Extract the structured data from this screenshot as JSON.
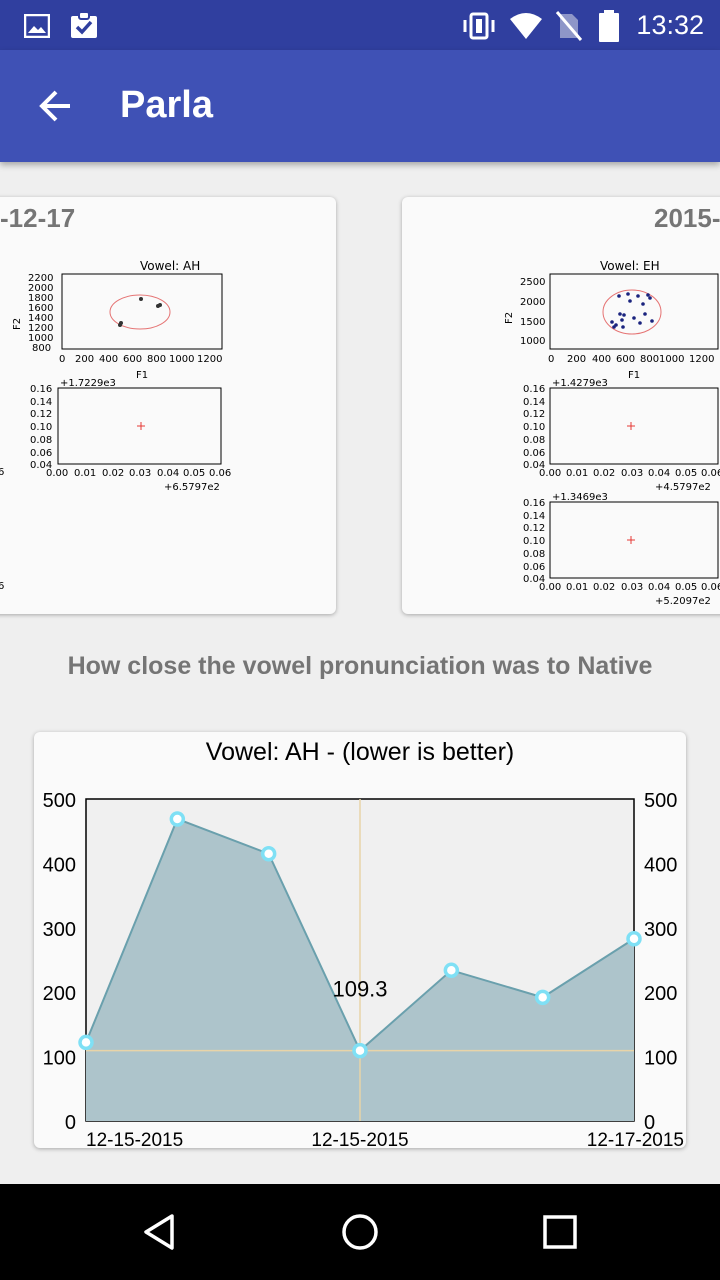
{
  "status_bar": {
    "time": "13:32"
  },
  "app_bar": {
    "title": "Parla"
  },
  "cards": {
    "left": {
      "date": "-12-17",
      "plot_title": "Vowel: AH",
      "ylabel": "F2",
      "xlabel": "F1",
      "y_ticks": [
        "2200",
        "2000",
        "1800",
        "1600",
        "1400",
        "1200",
        "1000",
        "800"
      ],
      "x_ticks": [
        "0",
        "200",
        "400",
        "600",
        "800",
        "1000",
        "1200"
      ],
      "sub1_offset": "+1.7229e3",
      "sub1_y_ticks": [
        "0.16",
        "0.14",
        "0.12",
        "0.10",
        "0.08",
        "0.06",
        "0.04"
      ],
      "sub1_x_ticks": [
        "0.00",
        "0.01",
        "0.02",
        "0.03",
        "0.04",
        "0.05",
        "0.06"
      ],
      "sub1_x_offset": "+6.5797e2",
      "edge_label": "6"
    },
    "right": {
      "date": "2015-",
      "plot_title": "Vowel: EH",
      "ylabel": "F2",
      "xlabel": "F1",
      "y_ticks": [
        "2500",
        "2000",
        "1500",
        "1000"
      ],
      "x_ticks": [
        "0",
        "200",
        "400",
        "600",
        "800",
        "1000",
        "1200"
      ],
      "sub1_offset": "+1.4279e3",
      "sub1_y_ticks": [
        "0.16",
        "0.14",
        "0.12",
        "0.10",
        "0.08",
        "0.06",
        "0.04"
      ],
      "sub1_x_ticks": [
        "0.00",
        "0.01",
        "0.02",
        "0.03",
        "0.04",
        "0.05",
        "0.06"
      ],
      "sub1_x_offset": "+4.5797e2",
      "sub2_offset": "+1.3469e3",
      "sub2_x_offset": "+5.2097e2"
    }
  },
  "section_title": "How close the vowel pronunciation was to Native",
  "colors": {
    "status_bar": "#303f9f",
    "app_bar": "#3f51b5",
    "area_fill": "#adc4cb",
    "area_line": "#6aa0ad",
    "point": "#7fe0f5",
    "crosshair": "#e8d4a8"
  },
  "chart_data": {
    "type": "area",
    "title": "Vowel: AH - (lower is better)",
    "ylim": [
      0,
      500
    ],
    "y_ticks": [
      0,
      100,
      200,
      300,
      400,
      500
    ],
    "x_tick_labels": [
      "12-15-2015",
      "12-15-2015",
      "12-17-2015"
    ],
    "values": [
      122,
      469,
      415,
      109.3,
      234,
      192,
      283
    ],
    "highlight_index": 3,
    "highlight_label": "109.3"
  }
}
